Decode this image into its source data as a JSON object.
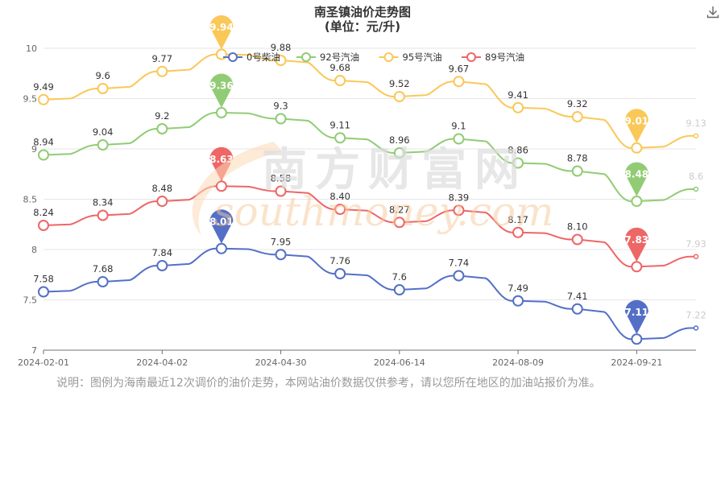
{
  "chart_data": {
    "type": "line",
    "title": "南圣镇油价走势图",
    "subtitle": "(单位：元/升)",
    "x": [
      "2024-02-01",
      "2024-03-01",
      "2024-04-02",
      "2024-04-16",
      "2024-04-30",
      "2024-05-15",
      "2024-06-14",
      "2024-06-28",
      "2024-08-09",
      "2024-08-23",
      "2024-09-21",
      "2024-10-05"
    ],
    "xticks": [
      "2024-02-01",
      "2024-04-02",
      "2024-04-30",
      "2024-06-14",
      "2024-08-09",
      "2024-09-21"
    ],
    "ylim": [
      7,
      10
    ],
    "yticks": [
      "7",
      "7.5",
      "8",
      "8.5",
      "9",
      "9.5",
      "10"
    ],
    "legend_position": "top",
    "series": [
      {
        "name": "0号柴油",
        "color": "#5470c6",
        "values": [
          7.58,
          7.68,
          7.84,
          8.01,
          7.95,
          7.76,
          7.6,
          7.74,
          7.49,
          7.41,
          7.11,
          7.22
        ],
        "labels": [
          "7.58",
          "7.68",
          "7.84",
          "",
          "7.95",
          "7.76",
          "7.6",
          "7.74",
          "7.49",
          "7.41",
          "",
          "7.22"
        ],
        "max_label": "8.01",
        "min_label": "7.11"
      },
      {
        "name": "92号汽油",
        "color": "#91cc75",
        "values": [
          8.94,
          9.04,
          9.2,
          9.36,
          9.3,
          9.11,
          8.96,
          9.1,
          8.86,
          8.78,
          8.48,
          8.6
        ],
        "labels": [
          "8.94",
          "9.04",
          "9.2",
          "",
          "9.3",
          "9.11",
          "8.96",
          "9.1",
          "8.86",
          "8.78",
          "",
          "8.6"
        ],
        "max_label": "9.36",
        "min_label": "8.48"
      },
      {
        "name": "95号汽油",
        "color": "#fac858",
        "values": [
          9.49,
          9.6,
          9.77,
          9.94,
          9.88,
          9.68,
          9.52,
          9.67,
          9.41,
          9.32,
          9.01,
          9.13
        ],
        "labels": [
          "9.49",
          "9.6",
          "9.77",
          "",
          "9.88",
          "9.68",
          "9.52",
          "9.67",
          "9.41",
          "9.32",
          "",
          "9.13"
        ],
        "max_label": "9.94",
        "min_label": "9.01"
      },
      {
        "name": "89号汽油",
        "color": "#ee6666",
        "values": [
          8.24,
          8.34,
          8.48,
          8.63,
          8.58,
          8.4,
          8.27,
          8.39,
          8.17,
          8.1,
          7.83,
          7.93
        ],
        "labels": [
          "8.24",
          "8.34",
          "8.48",
          "",
          "8.58",
          "8.40",
          "8.27",
          "8.39",
          "8.17",
          "8.10",
          "",
          "7.93"
        ],
        "max_label": "8.63",
        "min_label": "7.83"
      }
    ],
    "legend_order": [
      0,
      1,
      2,
      3
    ]
  },
  "note": "说明：图例为海南最近12次调价的油价走势，本网站油价数据仅供参考，请以您所在地区的加油站报价为准。",
  "watermark": {
    "cn": "南方财富网",
    "en": "southmoney.com"
  },
  "icons": {
    "download": "download-icon"
  }
}
